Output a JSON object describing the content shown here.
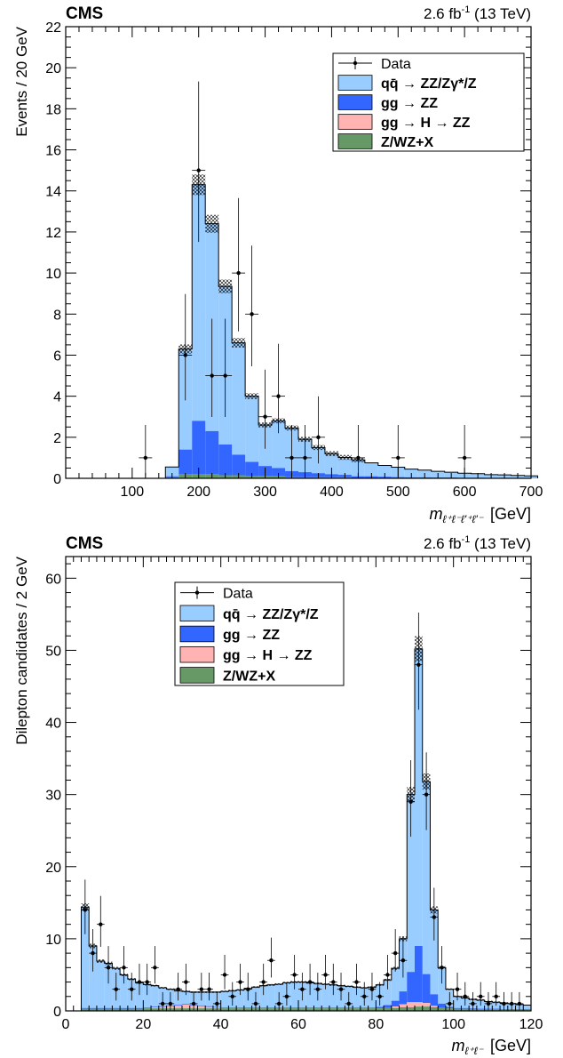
{
  "colors": {
    "qq": "#99ccff",
    "gg": "#3366ff",
    "higgs": "#ffb3b3",
    "zx": "#669966",
    "data": "#000000"
  },
  "chart_data": [
    {
      "type": "bar",
      "experiment_label": "CMS",
      "lumi_label": "2.6 fb",
      "lumi_sup": "-1",
      "energy_label": " (13 TeV)",
      "ylabel": "Events / 20 GeV",
      "xlabel_main": "m",
      "xlabel_sub": "ℓ⁺ℓ⁻ℓ'⁺ℓ'⁻",
      "xlabel_unit": "[GeV]",
      "xlim": [
        0,
        700
      ],
      "ylim": [
        0,
        22
      ],
      "bin_width": 20,
      "xticks": [
        100,
        200,
        300,
        400,
        500,
        600,
        700
      ],
      "yticks": [
        0,
        2,
        4,
        6,
        8,
        10,
        12,
        14,
        16,
        18,
        20,
        22
      ],
      "legend_position": "top-right",
      "legend": [
        {
          "key": "data",
          "label": "Data"
        },
        {
          "key": "qq",
          "label": "qq̄ → ZZ/Zγ*/Z"
        },
        {
          "key": "gg",
          "label": "gg → ZZ"
        },
        {
          "key": "higgs",
          "label": "gg → H → ZZ"
        },
        {
          "key": "zx",
          "label": "Z/WZ+X"
        }
      ],
      "bins_low_edge": [
        150,
        170,
        190,
        210,
        230,
        250,
        270,
        290,
        310,
        330,
        350,
        370,
        390,
        410,
        430,
        450,
        470,
        490,
        510,
        530,
        550,
        570,
        590,
        610,
        630,
        650,
        670,
        690
      ],
      "stack": {
        "zx": [
          0.05,
          0.2,
          0.2,
          0.2,
          0.15,
          0.15,
          0.1,
          0.1,
          0.1,
          0.05,
          0.05,
          0.05,
          0.05,
          0.05,
          0,
          0,
          0,
          0,
          0,
          0,
          0,
          0,
          0,
          0,
          0,
          0,
          0,
          0
        ],
        "higgs": [
          0,
          0,
          0,
          0,
          0,
          0,
          0,
          0,
          0,
          0,
          0,
          0,
          0,
          0,
          0,
          0,
          0,
          0,
          0,
          0,
          0,
          0,
          0,
          0,
          0,
          0,
          0,
          0
        ],
        "gg": [
          0.05,
          1.2,
          2.6,
          2.1,
          1.5,
          1.0,
          0.7,
          0.5,
          0.4,
          0.3,
          0.25,
          0.2,
          0.15,
          0.12,
          0.1,
          0.1,
          0.08,
          0.06,
          0.05,
          0.05,
          0.04,
          0.04,
          0.03,
          0.03,
          0.02,
          0.02,
          0.02,
          0.02
        ],
        "qq": [
          0.45,
          4.9,
          11.5,
          10.1,
          7.7,
          5.45,
          3.2,
          2.0,
          2.3,
          2.1,
          1.6,
          1.25,
          1.0,
          0.85,
          0.8,
          0.65,
          0.55,
          0.48,
          0.4,
          0.35,
          0.3,
          0.26,
          0.22,
          0.2,
          0.16,
          0.15,
          0.12,
          0.1
        ]
      },
      "data_points": [
        {
          "x": 120,
          "y": 1
        },
        {
          "x": 180,
          "y": 6
        },
        {
          "x": 200,
          "y": 15
        },
        {
          "x": 220,
          "y": 5
        },
        {
          "x": 240,
          "y": 5
        },
        {
          "x": 260,
          "y": 10
        },
        {
          "x": 280,
          "y": 8
        },
        {
          "x": 300,
          "y": 3
        },
        {
          "x": 320,
          "y": 4
        },
        {
          "x": 340,
          "y": 1
        },
        {
          "x": 360,
          "y": 1
        },
        {
          "x": 380,
          "y": 2
        },
        {
          "x": 440,
          "y": 1
        },
        {
          "x": 500,
          "y": 1
        },
        {
          "x": 600,
          "y": 1
        }
      ]
    },
    {
      "type": "bar",
      "experiment_label": "CMS",
      "lumi_label": "2.6 fb",
      "lumi_sup": "-1",
      "energy_label": " (13 TeV)",
      "ylabel": "Dilepton candidates / 2 GeV",
      "xlabel_main": "m",
      "xlabel_sub": "ℓ⁺ℓ⁻",
      "xlabel_unit": "[GeV]",
      "xlim": [
        0,
        120
      ],
      "ylim": [
        0,
        63
      ],
      "bin_width": 2,
      "xticks": [
        0,
        20,
        40,
        60,
        80,
        100,
        120
      ],
      "yticks": [
        0,
        10,
        20,
        30,
        40,
        50,
        60
      ],
      "legend_position": "top-center",
      "legend": [
        {
          "key": "data",
          "label": "Data"
        },
        {
          "key": "qq",
          "label": "qq̄ → ZZ/Zγ*/Z"
        },
        {
          "key": "gg",
          "label": "gg → ZZ"
        },
        {
          "key": "higgs",
          "label": "gg → H → ZZ"
        },
        {
          "key": "zx",
          "label": "Z/WZ+X"
        }
      ],
      "bins_low_edge": [
        4,
        6,
        8,
        10,
        12,
        14,
        16,
        18,
        20,
        22,
        24,
        26,
        28,
        30,
        32,
        34,
        36,
        38,
        40,
        42,
        44,
        46,
        48,
        50,
        52,
        54,
        56,
        58,
        60,
        62,
        64,
        66,
        68,
        70,
        72,
        74,
        76,
        78,
        80,
        82,
        84,
        86,
        88,
        90,
        92,
        94,
        96,
        98,
        100,
        102,
        104,
        106,
        108,
        110,
        112,
        114,
        116,
        118
      ],
      "stack": {
        "zx": [
          0.3,
          0.3,
          0.3,
          0.3,
          0.3,
          0.3,
          0.3,
          0.3,
          0.35,
          0.35,
          0.35,
          0.35,
          0.35,
          0.35,
          0.35,
          0.35,
          0.35,
          0.35,
          0.35,
          0.35,
          0.35,
          0.35,
          0.35,
          0.35,
          0.35,
          0.35,
          0.35,
          0.35,
          0.35,
          0.35,
          0.35,
          0.35,
          0.35,
          0.35,
          0.35,
          0.35,
          0.35,
          0.35,
          0.35,
          0.4,
          0.4,
          0.5,
          0.5,
          0.6,
          0.6,
          0.5,
          0.4,
          0.35,
          0.3,
          0.3,
          0.25,
          0.2,
          0.2,
          0.2,
          0.15,
          0.15,
          0.15,
          0.15
        ],
        "higgs": [
          0,
          0,
          0,
          0,
          0,
          0,
          0,
          0,
          0,
          0.15,
          0.2,
          0.3,
          0.4,
          0.5,
          0.4,
          0.3,
          0.2,
          0.1,
          0,
          0,
          0,
          0,
          0,
          0,
          0,
          0,
          0,
          0,
          0,
          0,
          0,
          0,
          0,
          0,
          0,
          0,
          0,
          0,
          0,
          0,
          0.2,
          0.4,
          0.7,
          0.6,
          0.5,
          0.2,
          0,
          0,
          0,
          0,
          0,
          0,
          0,
          0,
          0,
          0,
          0,
          0
        ],
        "gg": [
          0.1,
          0.1,
          0.1,
          0.1,
          0.1,
          0.1,
          0.1,
          0.1,
          0.1,
          0.1,
          0.1,
          0.1,
          0.1,
          0.1,
          0.1,
          0.1,
          0.1,
          0.1,
          0.1,
          0.1,
          0.1,
          0.1,
          0.1,
          0.1,
          0.1,
          0.1,
          0.1,
          0.1,
          0.1,
          0.1,
          0.1,
          0.1,
          0.1,
          0.1,
          0.1,
          0.1,
          0.1,
          0.1,
          0.2,
          0.4,
          0.8,
          1.8,
          4.2,
          7.8,
          4.0,
          1.6,
          0.6,
          0.2,
          0.1,
          0.1,
          0.1,
          0.1,
          0.1,
          0.1,
          0.1,
          0.1,
          0.1,
          0.1
        ],
        "qq": [
          14.0,
          8.6,
          6.5,
          6.2,
          5.5,
          4.6,
          4.0,
          3.5,
          3.2,
          2.9,
          2.55,
          2.25,
          1.95,
          1.75,
          1.75,
          1.85,
          1.95,
          2.05,
          2.25,
          2.35,
          2.45,
          2.65,
          2.85,
          3.05,
          3.15,
          3.25,
          3.45,
          3.55,
          3.55,
          3.45,
          3.35,
          3.25,
          3.15,
          3.05,
          2.95,
          2.85,
          2.75,
          2.85,
          3.05,
          3.5,
          4.5,
          7.3,
          24.6,
          41.2,
          26.7,
          11.7,
          5.0,
          2.45,
          1.6,
          1.4,
          1.25,
          1.2,
          1.0,
          0.9,
          0.85,
          0.75,
          0.65,
          0.55
        ]
      },
      "data_points": [
        {
          "x": 5,
          "y": 14
        },
        {
          "x": 7,
          "y": 8
        },
        {
          "x": 9,
          "y": 12
        },
        {
          "x": 11,
          "y": 6
        },
        {
          "x": 13,
          "y": 3
        },
        {
          "x": 15,
          "y": 6
        },
        {
          "x": 17,
          "y": 3
        },
        {
          "x": 19,
          "y": 4
        },
        {
          "x": 21,
          "y": 4
        },
        {
          "x": 23,
          "y": 6
        },
        {
          "x": 25,
          "y": 1
        },
        {
          "x": 27,
          "y": 1
        },
        {
          "x": 29,
          "y": 3
        },
        {
          "x": 31,
          "y": 4
        },
        {
          "x": 33,
          "y": 1
        },
        {
          "x": 35,
          "y": 3
        },
        {
          "x": 37,
          "y": 3
        },
        {
          "x": 39,
          "y": 1
        },
        {
          "x": 41,
          "y": 5
        },
        {
          "x": 43,
          "y": 2
        },
        {
          "x": 45,
          "y": 4
        },
        {
          "x": 47,
          "y": 3
        },
        {
          "x": 49,
          "y": 1
        },
        {
          "x": 51,
          "y": 4
        },
        {
          "x": 53,
          "y": 7
        },
        {
          "x": 55,
          "y": 1
        },
        {
          "x": 57,
          "y": 2
        },
        {
          "x": 59,
          "y": 5
        },
        {
          "x": 61,
          "y": 3
        },
        {
          "x": 63,
          "y": 4
        },
        {
          "x": 65,
          "y": 3
        },
        {
          "x": 67,
          "y": 5
        },
        {
          "x": 69,
          "y": 4
        },
        {
          "x": 71,
          "y": 3
        },
        {
          "x": 73,
          "y": 1
        },
        {
          "x": 75,
          "y": 4
        },
        {
          "x": 77,
          "y": 2
        },
        {
          "x": 79,
          "y": 3
        },
        {
          "x": 81,
          "y": 2
        },
        {
          "x": 83,
          "y": 5
        },
        {
          "x": 85,
          "y": 8
        },
        {
          "x": 87,
          "y": 7
        },
        {
          "x": 89,
          "y": 29
        },
        {
          "x": 91,
          "y": 48
        },
        {
          "x": 93,
          "y": 30
        },
        {
          "x": 95,
          "y": 13
        },
        {
          "x": 97,
          "y": 6
        },
        {
          "x": 99,
          "y": 1
        },
        {
          "x": 101,
          "y": 3
        },
        {
          "x": 103,
          "y": 2
        },
        {
          "x": 105,
          "y": 1
        },
        {
          "x": 107,
          "y": 2
        },
        {
          "x": 109,
          "y": 1
        },
        {
          "x": 111,
          "y": 2
        },
        {
          "x": 113,
          "y": 1
        },
        {
          "x": 115,
          "y": 1
        },
        {
          "x": 117,
          "y": 1
        }
      ]
    }
  ]
}
